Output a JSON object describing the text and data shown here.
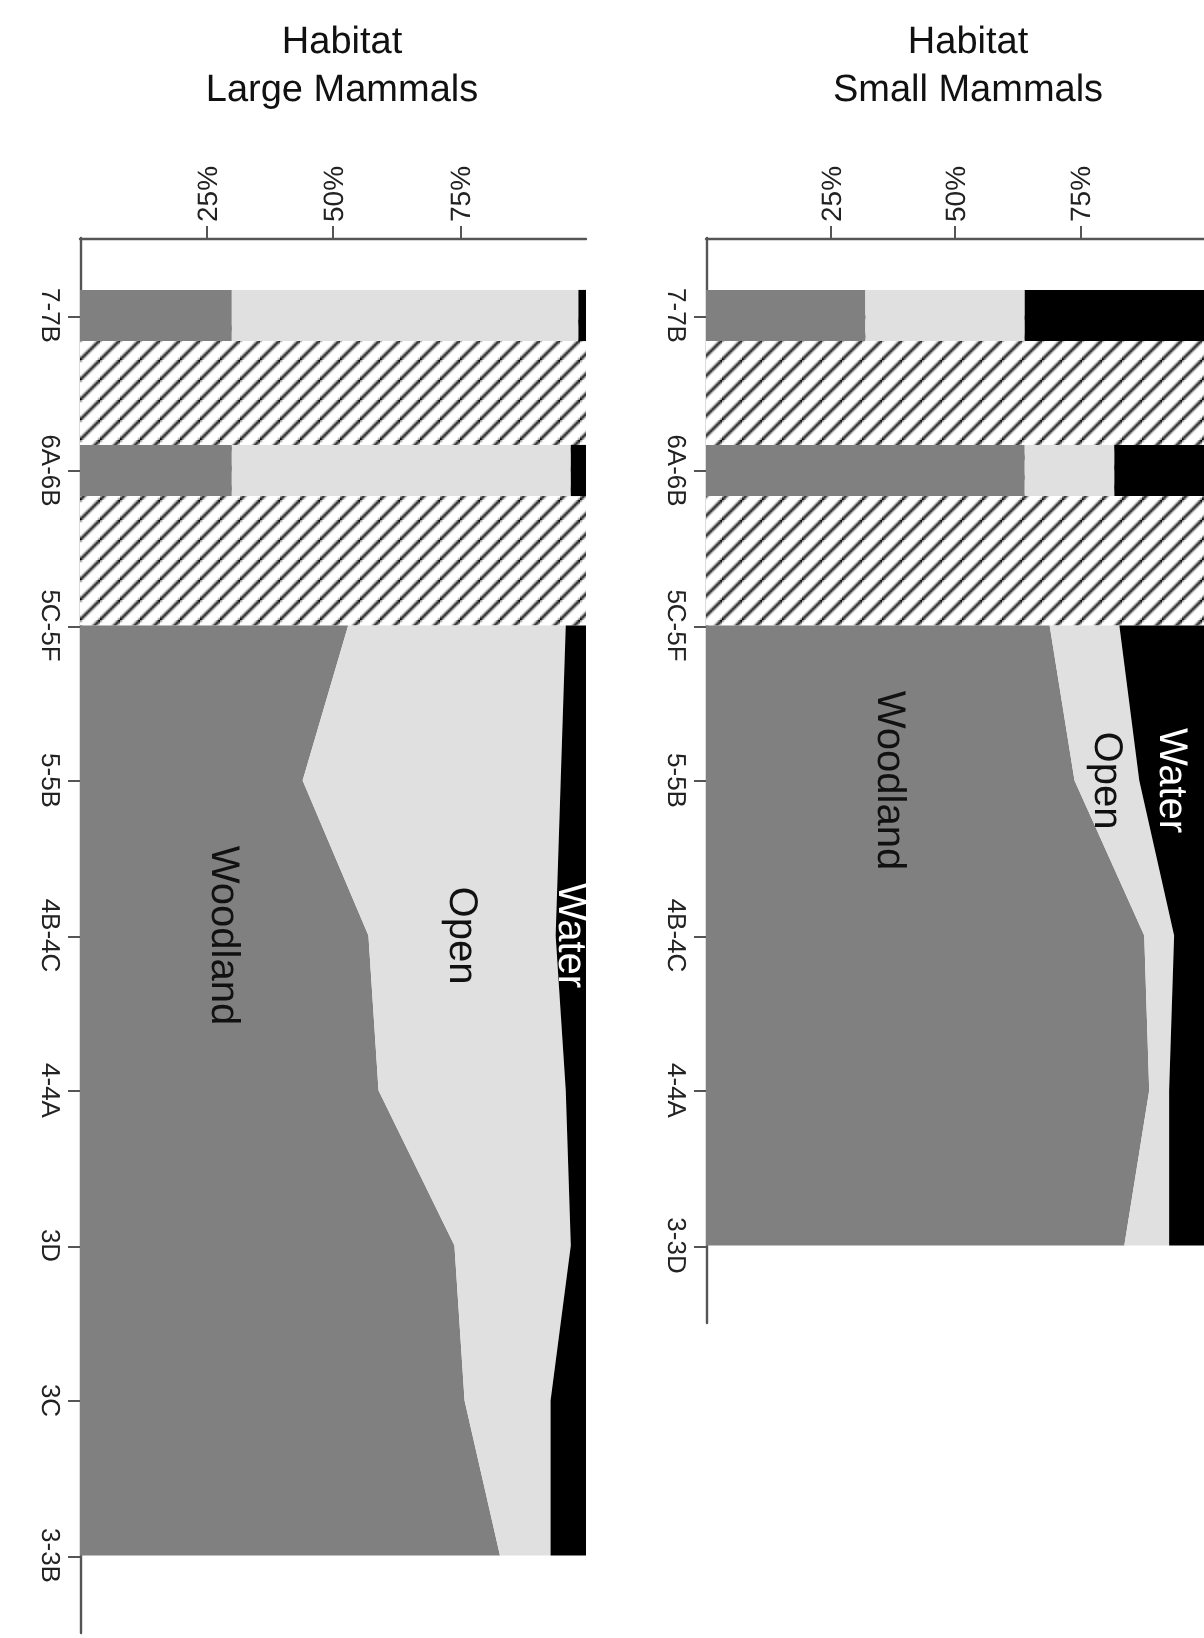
{
  "chart_data": [
    {
      "type": "area",
      "title": "Habitat\nLarge Mammals",
      "orientation": "horizontal",
      "stacked": true,
      "legend": false,
      "grid": false,
      "categories": [
        "7-7B",
        "6A-6B",
        "5C-5F",
        "5-5B",
        "4B-4C",
        "4-4A",
        "3D",
        "3C",
        "3-3B"
      ],
      "xlim": [
        0,
        100
      ],
      "xticks": [
        {
          "value": 25,
          "label": "25%"
        },
        {
          "value": 50,
          "label": "50%"
        },
        {
          "value": 75,
          "label": "75%"
        }
      ],
      "bands": [
        {
          "axis": "y",
          "from": "7-7B",
          "to": "5C-5F"
        }
      ],
      "series": [
        {
          "type": "bar",
          "color": "#808080",
          "values": [
            30,
            30,
            null,
            null,
            null,
            null,
            null,
            null,
            null
          ]
        },
        {
          "type": "bar",
          "color": "#e0e0e0",
          "values": [
            68.5,
            67,
            null,
            null,
            null,
            null,
            null,
            null,
            null
          ]
        },
        {
          "type": "bar",
          "color": "#000000",
          "values": [
            1.5,
            3,
            null,
            null,
            null,
            null,
            null,
            null,
            null
          ]
        },
        {
          "name": "Woodland",
          "color": "#808080",
          "values": [
            null,
            null,
            53,
            44,
            57,
            59,
            74,
            76,
            83
          ]
        },
        {
          "name": "Open",
          "color": "#e0e0e0",
          "values": [
            null,
            null,
            43,
            51,
            37,
            37,
            23,
            17,
            10
          ]
        },
        {
          "name": "Water",
          "color": "#000000",
          "values": [
            null,
            null,
            4,
            5,
            6,
            4,
            3,
            7,
            7
          ]
        }
      ]
    },
    {
      "type": "area",
      "title": "Habitat\nSmall Mammals",
      "orientation": "horizontal",
      "stacked": true,
      "legend": false,
      "grid": false,
      "categories": [
        "7-7B",
        "6A-6B",
        "5C-5F",
        "5-5B",
        "4B-4C",
        "4-4A",
        "3-3D"
      ],
      "xlim": [
        0,
        100
      ],
      "xticks": [
        {
          "value": 25,
          "label": "25%"
        },
        {
          "value": 50,
          "label": "50%"
        },
        {
          "value": 75,
          "label": "75%"
        }
      ],
      "bands": [
        {
          "axis": "y",
          "from": "7-7B",
          "to": "5C-5F"
        }
      ],
      "series": [
        {
          "type": "bar",
          "color": "#808080",
          "values": [
            32,
            64,
            null,
            null,
            null,
            null,
            null
          ]
        },
        {
          "type": "bar",
          "color": "#e0e0e0",
          "values": [
            32,
            18,
            null,
            null,
            null,
            null,
            null
          ]
        },
        {
          "type": "bar",
          "color": "#000000",
          "values": [
            36,
            18,
            null,
            null,
            null,
            null,
            null
          ]
        },
        {
          "name": "Woodland",
          "color": "#808080",
          "values": [
            null,
            null,
            69,
            74,
            88,
            89,
            84
          ]
        },
        {
          "name": "Open",
          "color": "#e0e0e0",
          "values": [
            null,
            null,
            14,
            13,
            6,
            4,
            9
          ]
        },
        {
          "name": "Water",
          "color": "#000000",
          "values": [
            null,
            null,
            17,
            13,
            6,
            7,
            7
          ]
        }
      ]
    }
  ]
}
